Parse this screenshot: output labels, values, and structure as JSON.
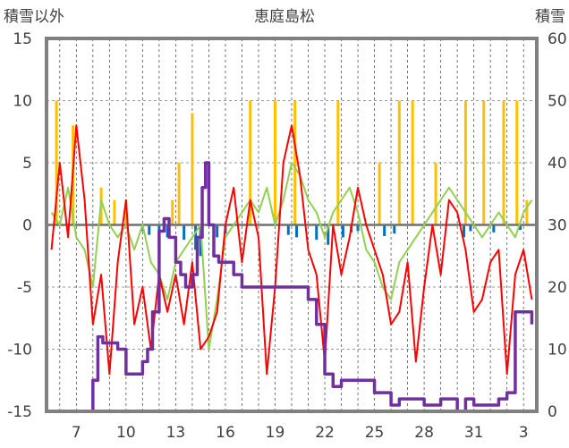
{
  "chart_data": {
    "type": "line",
    "title": "恵庭島松",
    "ylabel_left": "積雪以外",
    "ylabel_right": "積雪",
    "y_left": {
      "min": -15,
      "max": 15,
      "ticks": [
        15,
        10,
        5,
        0,
        -5,
        -10,
        -15
      ]
    },
    "y_right": {
      "min": 0,
      "max": 60,
      "ticks": [
        60,
        50,
        40,
        30,
        20,
        10,
        0
      ]
    },
    "x_tick_labels": [
      "7",
      "10",
      "13",
      "16",
      "19",
      "22",
      "25",
      "28",
      "31",
      "3"
    ],
    "grid": true,
    "colors": {
      "temperature": "#ff0000",
      "green_series": "#92d050",
      "snow_depth": "#7030a0",
      "bars_positive": "#ffc000",
      "bars_negative": "#0070c0",
      "frame": "#808080"
    },
    "series": [
      {
        "key": "temperature",
        "axis": "left",
        "x": [
          5.5,
          6.0,
          6.5,
          7.0,
          7.5,
          8.0,
          8.5,
          9.0,
          9.5,
          10.0,
          10.5,
          11.0,
          11.5,
          12.0,
          12.5,
          13.0,
          13.5,
          14.0,
          14.5,
          15.0,
          15.5,
          16.0,
          16.5,
          17.0,
          17.5,
          18.0,
          18.5,
          19.0,
          19.5,
          20.0,
          20.5,
          21.0,
          21.5,
          22.0,
          22.5,
          23.0,
          23.5,
          24.0,
          24.5,
          25.0,
          25.5,
          26.0,
          26.5,
          27.0,
          27.5,
          28.0,
          28.5,
          29.0,
          29.5,
          30.0,
          30.5,
          31.0,
          31.5,
          32.0,
          32.5,
          33.0,
          33.5,
          34.0,
          34.5
        ],
        "y": [
          -2,
          5,
          -1,
          8,
          2,
          -8,
          -4,
          -12,
          -3,
          2,
          -8,
          -5,
          -10,
          -4,
          -7,
          -4,
          -8,
          -3,
          -10,
          -9,
          -7,
          0,
          3,
          -3,
          2,
          -1,
          -12,
          -5,
          5,
          8,
          4,
          -2,
          -4,
          -11,
          0,
          -4,
          -1,
          3,
          0,
          -2,
          -4,
          -8,
          -7,
          -3,
          -11,
          -5,
          0,
          -4,
          2,
          1,
          -2,
          -7,
          -6,
          -3,
          -2,
          -12,
          -4,
          -2,
          -6
        ]
      },
      {
        "key": "green_series",
        "axis": "left",
        "x": [
          5.5,
          6.0,
          6.5,
          7.0,
          7.5,
          8.0,
          8.5,
          9.0,
          9.5,
          10.0,
          10.5,
          11.0,
          11.5,
          12.0,
          12.5,
          13.0,
          13.5,
          14.0,
          14.5,
          15.0,
          15.5,
          16.0,
          16.5,
          17.0,
          17.5,
          18.0,
          18.5,
          19.0,
          19.5,
          20.0,
          20.5,
          21.0,
          21.5,
          22.0,
          22.5,
          23.0,
          23.5,
          24.0,
          24.5,
          25.0,
          25.5,
          26.0,
          26.5,
          27.0,
          27.5,
          28.0,
          28.5,
          29.0,
          29.5,
          30.0,
          30.5,
          31.0,
          31.5,
          32.0,
          32.5,
          33.0,
          33.5,
          34.0,
          34.5
        ],
        "y": [
          1,
          0,
          3,
          -1,
          -2,
          -5,
          2,
          0,
          -1,
          0,
          -2,
          0,
          -3,
          -4,
          -6,
          -3,
          -2,
          -1,
          0,
          -10,
          -6,
          -1,
          0,
          1,
          2,
          1,
          3,
          0,
          2,
          5,
          4,
          2,
          1,
          -1,
          1,
          2,
          3,
          1,
          -2,
          -3,
          -5,
          -6,
          -3,
          -2,
          -1,
          0,
          1,
          2,
          3,
          2,
          1,
          0,
          -1,
          0,
          1,
          0,
          -1,
          1,
          2
        ]
      },
      {
        "key": "snow_depth",
        "axis": "right",
        "x": [
          5.5,
          6.0,
          7.0,
          7.8,
          8.0,
          8.3,
          8.6,
          9.0,
          9.5,
          10.0,
          10.3,
          10.6,
          11.0,
          11.3,
          11.6,
          12.0,
          12.3,
          12.6,
          13.0,
          13.3,
          13.6,
          14.0,
          14.3,
          14.6,
          14.8,
          15.0,
          15.3,
          15.6,
          16.0,
          16.5,
          17.0,
          17.5,
          18.0,
          18.5,
          19.0,
          19.5,
          20.0,
          20.5,
          21.0,
          21.5,
          22.0,
          22.5,
          23.0,
          23.5,
          24.0,
          24.5,
          25.0,
          25.5,
          26.0,
          26.5,
          27.0,
          27.5,
          28.0,
          28.5,
          29.0,
          29.5,
          30.0,
          30.5,
          31.0,
          31.5,
          32.0,
          32.5,
          33.0,
          33.5,
          34.0,
          34.5
        ],
        "y": [
          0,
          0,
          0,
          0,
          5,
          12,
          11,
          11,
          10,
          6,
          6,
          6,
          8,
          10,
          16,
          29,
          31,
          28,
          24,
          22,
          20,
          22,
          28,
          36,
          40,
          30,
          25,
          24,
          24,
          22,
          20,
          20,
          20,
          20,
          20,
          20,
          20,
          20,
          18,
          14,
          6,
          4,
          5,
          5,
          5,
          5,
          3,
          3,
          1,
          2,
          2,
          2,
          1,
          1,
          2,
          2,
          0,
          2,
          1,
          1,
          1,
          2,
          3,
          16,
          16,
          14
        ]
      }
    ],
    "bars_positive": {
      "axis": "left",
      "x": [
        5.8,
        6.8,
        8.5,
        9.3,
        10.0,
        12.8,
        13.2,
        14.0,
        17.5,
        19.0,
        20.2,
        22.8,
        25.3,
        26.5,
        27.3,
        28.7,
        30.5,
        31.6,
        32.8,
        33.6,
        34.2
      ],
      "y": [
        10,
        8,
        3,
        2,
        2,
        2,
        5,
        9,
        10,
        10,
        10,
        10,
        5,
        10,
        10,
        5,
        10,
        10,
        10,
        10,
        2
      ]
    },
    "bars_negative": {
      "axis": "left",
      "x": [
        11.0,
        11.4,
        12.0,
        12.5,
        13.5,
        14.2,
        14.5,
        15.5,
        16.0,
        19.8,
        20.3,
        21.5,
        22.2,
        23.1,
        23.6,
        24.0,
        25.6,
        26.2,
        30.4,
        30.8,
        32.2,
        33.8
      ],
      "y": [
        -0.5,
        -0.8,
        -0.6,
        -1.0,
        -1.2,
        -2.0,
        -2.5,
        -1.0,
        -0.7,
        -0.8,
        -1.0,
        -1.2,
        -1.6,
        -1.0,
        -0.6,
        -0.5,
        -0.9,
        -0.7,
        -1.0,
        -0.5,
        -0.6,
        -0.4
      ]
    }
  }
}
